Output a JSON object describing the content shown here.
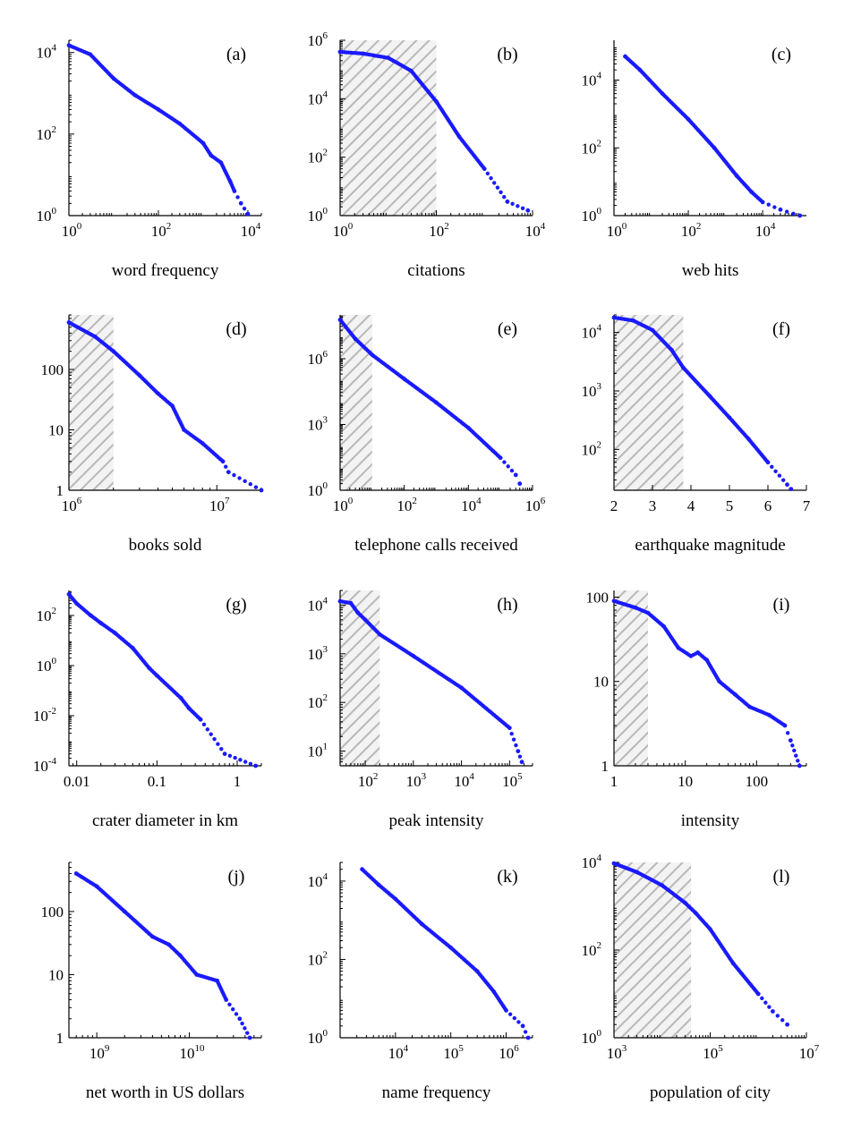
{
  "chart_data": [
    {
      "type": "scatter",
      "panel": "(a)",
      "xlabel": "word frequency",
      "ylabel": "",
      "xscale": "log",
      "yscale": "log",
      "xlim": [
        1,
        20000
      ],
      "ylim": [
        1,
        20000
      ],
      "xticks": [
        {
          "base": "10",
          "exp": "0",
          "value": 1
        },
        {
          "base": "10",
          "exp": "2",
          "value": 100
        },
        {
          "base": "10",
          "exp": "4",
          "value": 10000
        }
      ],
      "yticks": [
        {
          "base": "10",
          "exp": "0",
          "value": 1
        },
        {
          "base": "10",
          "exp": "2",
          "value": 100
        },
        {
          "base": "10",
          "exp": "4",
          "value": 10000
        }
      ],
      "shaded_region": null,
      "points": [
        [
          1,
          15000
        ],
        [
          3,
          9000
        ],
        [
          10,
          2300
        ],
        [
          30,
          900
        ],
        [
          100,
          400
        ],
        [
          300,
          180
        ],
        [
          1000,
          60
        ],
        [
          1500,
          30
        ],
        [
          2500,
          20
        ],
        [
          4000,
          7
        ],
        [
          5000,
          4
        ],
        [
          7000,
          2
        ],
        [
          10000,
          1.1
        ]
      ]
    },
    {
      "type": "scatter",
      "panel": "(b)",
      "xlabel": "citations",
      "ylabel": "",
      "xscale": "log",
      "yscale": "log",
      "xlim": [
        1,
        10000
      ],
      "ylim": [
        1,
        1000000
      ],
      "xticks": [
        {
          "base": "10",
          "exp": "0",
          "value": 1
        },
        {
          "base": "10",
          "exp": "2",
          "value": 100
        },
        {
          "base": "10",
          "exp": "4",
          "value": 10000
        }
      ],
      "yticks": [
        {
          "base": "10",
          "exp": "0",
          "value": 1
        },
        {
          "base": "10",
          "exp": "2",
          "value": 100
        },
        {
          "base": "10",
          "exp": "4",
          "value": 10000
        },
        {
          "base": "10",
          "exp": "6",
          "value": 1000000
        }
      ],
      "shaded_region": [
        1,
        100
      ],
      "points": [
        [
          1,
          400000
        ],
        [
          3,
          350000
        ],
        [
          10,
          250000
        ],
        [
          30,
          90000
        ],
        [
          100,
          8000
        ],
        [
          300,
          500
        ],
        [
          1000,
          40
        ],
        [
          3000,
          3
        ],
        [
          8000,
          1.5
        ]
      ]
    },
    {
      "type": "scatter",
      "panel": "(c)",
      "xlabel": "web hits",
      "ylabel": "",
      "xscale": "log",
      "yscale": "log",
      "xlim": [
        1,
        150000
      ],
      "ylim": [
        1,
        150000
      ],
      "xticks": [
        {
          "base": "10",
          "exp": "0",
          "value": 1
        },
        {
          "base": "10",
          "exp": "2",
          "value": 100
        },
        {
          "base": "10",
          "exp": "4",
          "value": 10000
        }
      ],
      "yticks": [
        {
          "base": "10",
          "exp": "0",
          "value": 1
        },
        {
          "base": "10",
          "exp": "2",
          "value": 100
        },
        {
          "base": "10",
          "exp": "4",
          "value": 10000
        }
      ],
      "shaded_region": null,
      "points": [
        [
          2,
          50000
        ],
        [
          5,
          20000
        ],
        [
          20,
          4000
        ],
        [
          100,
          700
        ],
        [
          500,
          100
        ],
        [
          2000,
          15
        ],
        [
          5000,
          5
        ],
        [
          10000,
          2.5
        ],
        [
          30000,
          1.5
        ],
        [
          100000,
          1
        ]
      ]
    },
    {
      "type": "scatter",
      "panel": "(d)",
      "xlabel": "books sold",
      "ylabel": "",
      "xscale": "log",
      "yscale": "log",
      "xlim": [
        1000000,
        20000000
      ],
      "ylim": [
        1,
        800
      ],
      "xticks": [
        {
          "base": "10",
          "exp": "6",
          "value": 1000000
        },
        {
          "base": "10",
          "exp": "7",
          "value": 10000000
        }
      ],
      "yticks": [
        {
          "base": "1",
          "exp": "",
          "value": 1
        },
        {
          "base": "10",
          "exp": "",
          "value": 10
        },
        {
          "base": "100",
          "exp": "",
          "value": 100
        }
      ],
      "shaded_region": [
        1000000,
        2000000
      ],
      "points": [
        [
          1000000,
          600
        ],
        [
          1500000,
          350
        ],
        [
          2000000,
          200
        ],
        [
          3000000,
          80
        ],
        [
          4000000,
          40
        ],
        [
          5000000,
          25
        ],
        [
          6000000,
          10
        ],
        [
          8000000,
          6
        ],
        [
          11000000,
          3
        ],
        [
          12000000,
          2
        ],
        [
          20000000,
          1
        ]
      ]
    },
    {
      "type": "scatter",
      "panel": "(e)",
      "xlabel": "telephone calls received",
      "ylabel": "",
      "xscale": "log",
      "yscale": "log",
      "xlim": [
        1,
        1000000
      ],
      "ylim": [
        1,
        100000000
      ],
      "xticks": [
        {
          "base": "10",
          "exp": "0",
          "value": 1
        },
        {
          "base": "10",
          "exp": "2",
          "value": 100
        },
        {
          "base": "10",
          "exp": "4",
          "value": 10000
        },
        {
          "base": "10",
          "exp": "6",
          "value": 1000000
        }
      ],
      "yticks": [
        {
          "base": "10",
          "exp": "0",
          "value": 1
        },
        {
          "base": "10",
          "exp": "3",
          "value": 1000
        },
        {
          "base": "10",
          "exp": "6",
          "value": 1000000
        }
      ],
      "shaded_region": [
        1,
        10
      ],
      "points": [
        [
          1,
          60000000
        ],
        [
          3,
          8000000
        ],
        [
          10,
          1500000
        ],
        [
          100,
          120000
        ],
        [
          1000,
          10000
        ],
        [
          10000,
          700
        ],
        [
          100000,
          30
        ],
        [
          300000,
          5
        ],
        [
          400000,
          2
        ]
      ]
    },
    {
      "type": "scatter",
      "panel": "(f)",
      "xlabel": "earthquake magnitude",
      "ylabel": "",
      "xscale": "linear",
      "yscale": "log",
      "xlim": [
        2,
        7
      ],
      "ylim": [
        20,
        20000
      ],
      "xticks": [
        {
          "base": "2",
          "exp": "",
          "value": 2
        },
        {
          "base": "3",
          "exp": "",
          "value": 3
        },
        {
          "base": "4",
          "exp": "",
          "value": 4
        },
        {
          "base": "5",
          "exp": "",
          "value": 5
        },
        {
          "base": "6",
          "exp": "",
          "value": 6
        },
        {
          "base": "7",
          "exp": "",
          "value": 7
        }
      ],
      "yticks": [
        {
          "base": "10",
          "exp": "2",
          "value": 100
        },
        {
          "base": "10",
          "exp": "3",
          "value": 1000
        },
        {
          "base": "10",
          "exp": "4",
          "value": 10000
        }
      ],
      "shaded_region": [
        2,
        3.8
      ],
      "points": [
        [
          2,
          18000
        ],
        [
          2.5,
          16000
        ],
        [
          3,
          11000
        ],
        [
          3.5,
          5000
        ],
        [
          3.8,
          2500
        ],
        [
          4.5,
          800
        ],
        [
          5,
          350
        ],
        [
          5.5,
          150
        ],
        [
          6,
          60
        ],
        [
          6.5,
          25
        ],
        [
          6.6,
          21
        ]
      ]
    },
    {
      "type": "scatter",
      "panel": "(g)",
      "xlabel": "crater diameter in km",
      "ylabel": "",
      "xscale": "log",
      "yscale": "log",
      "xlim": [
        0.008,
        2
      ],
      "ylim": [
        0.0001,
        1000
      ],
      "xticks": [
        {
          "base": "0.01",
          "exp": "",
          "value": 0.01
        },
        {
          "base": "0.1",
          "exp": "",
          "value": 0.1
        },
        {
          "base": "1",
          "exp": "",
          "value": 1
        }
      ],
      "yticks": [
        {
          "base": "10",
          "exp": "-4",
          "value": 0.0001
        },
        {
          "base": "10",
          "exp": "-2",
          "value": 0.01
        },
        {
          "base": "10",
          "exp": "0",
          "value": 1
        },
        {
          "base": "10",
          "exp": "2",
          "value": 100
        }
      ],
      "shaded_region": null,
      "points": [
        [
          0.008,
          700
        ],
        [
          0.01,
          300
        ],
        [
          0.015,
          100
        ],
        [
          0.02,
          50
        ],
        [
          0.03,
          20
        ],
        [
          0.05,
          5
        ],
        [
          0.08,
          0.8
        ],
        [
          0.1,
          0.4
        ],
        [
          0.2,
          0.05
        ],
        [
          0.25,
          0.02
        ],
        [
          0.35,
          0.007
        ],
        [
          0.7,
          0.0003
        ],
        [
          1.7,
          0.0001
        ]
      ]
    },
    {
      "type": "scatter",
      "panel": "(h)",
      "xlabel": "peak intensity",
      "ylabel": "",
      "xscale": "log",
      "yscale": "log",
      "xlim": [
        30,
        300000
      ],
      "ylim": [
        5,
        20000
      ],
      "xticks": [
        {
          "base": "10",
          "exp": "2",
          "value": 100
        },
        {
          "base": "10",
          "exp": "3",
          "value": 1000
        },
        {
          "base": "10",
          "exp": "4",
          "value": 10000
        },
        {
          "base": "10",
          "exp": "5",
          "value": 100000
        }
      ],
      "yticks": [
        {
          "base": "10",
          "exp": "1",
          "value": 10
        },
        {
          "base": "10",
          "exp": "2",
          "value": 100
        },
        {
          "base": "10",
          "exp": "3",
          "value": 1000
        },
        {
          "base": "10",
          "exp": "4",
          "value": 10000
        }
      ],
      "shaded_region": [
        30,
        200
      ],
      "points": [
        [
          30,
          12000
        ],
        [
          50,
          11000
        ],
        [
          70,
          7000
        ],
        [
          100,
          5000
        ],
        [
          200,
          2500
        ],
        [
          1000,
          900
        ],
        [
          10000,
          200
        ],
        [
          100000,
          30
        ],
        [
          150000,
          10
        ],
        [
          180000,
          6
        ]
      ]
    },
    {
      "type": "scatter",
      "panel": "(i)",
      "xlabel": "intensity",
      "ylabel": "",
      "xscale": "log",
      "yscale": "log",
      "xlim": [
        1,
        500
      ],
      "ylim": [
        1,
        120
      ],
      "xticks": [
        {
          "base": "1",
          "exp": "",
          "value": 1
        },
        {
          "base": "10",
          "exp": "",
          "value": 10
        },
        {
          "base": "100",
          "exp": "",
          "value": 100
        }
      ],
      "yticks": [
        {
          "base": "1",
          "exp": "",
          "value": 1
        },
        {
          "base": "10",
          "exp": "",
          "value": 10
        },
        {
          "base": "100",
          "exp": "",
          "value": 100
        }
      ],
      "shaded_region": [
        1,
        3
      ],
      "points": [
        [
          1,
          90
        ],
        [
          2,
          75
        ],
        [
          3,
          65
        ],
        [
          5,
          45
        ],
        [
          8,
          25
        ],
        [
          12,
          20
        ],
        [
          15,
          22
        ],
        [
          20,
          18
        ],
        [
          30,
          10
        ],
        [
          50,
          7
        ],
        [
          80,
          5
        ],
        [
          150,
          4
        ],
        [
          250,
          3
        ],
        [
          300,
          2
        ],
        [
          400,
          1
        ]
      ]
    },
    {
      "type": "scatter",
      "panel": "(j)",
      "xlabel": "net worth in US dollars",
      "ylabel": "",
      "xscale": "log",
      "yscale": "log",
      "xlim": [
        500000000,
        60000000000
      ],
      "ylim": [
        1,
        600
      ],
      "xticks": [
        {
          "base": "10",
          "exp": "9",
          "value": 1000000000
        },
        {
          "base": "10",
          "exp": "10",
          "value": 10000000000
        }
      ],
      "yticks": [
        {
          "base": "1",
          "exp": "",
          "value": 1
        },
        {
          "base": "10",
          "exp": "",
          "value": 10
        },
        {
          "base": "100",
          "exp": "",
          "value": 100
        }
      ],
      "shaded_region": null,
      "points": [
        [
          600000000,
          400
        ],
        [
          1000000000,
          250
        ],
        [
          2000000000,
          100
        ],
        [
          4000000000,
          40
        ],
        [
          6000000000,
          30
        ],
        [
          8000000000,
          20
        ],
        [
          12000000000,
          10
        ],
        [
          20000000000,
          8
        ],
        [
          25000000000,
          4
        ],
        [
          35000000000,
          2
        ],
        [
          45000000000,
          1
        ]
      ]
    },
    {
      "type": "scatter",
      "panel": "(k)",
      "xlabel": "name frequency",
      "ylabel": "",
      "xscale": "log",
      "yscale": "log",
      "xlim": [
        1000,
        3000000
      ],
      "ylim": [
        1,
        30000
      ],
      "xticks": [
        {
          "base": "10",
          "exp": "4",
          "value": 10000
        },
        {
          "base": "10",
          "exp": "5",
          "value": 100000
        },
        {
          "base": "10",
          "exp": "6",
          "value": 1000000
        }
      ],
      "yticks": [
        {
          "base": "10",
          "exp": "0",
          "value": 1
        },
        {
          "base": "10",
          "exp": "2",
          "value": 100
        },
        {
          "base": "10",
          "exp": "4",
          "value": 10000
        }
      ],
      "shaded_region": null,
      "points": [
        [
          2500,
          20000
        ],
        [
          5000,
          8000
        ],
        [
          10000,
          3500
        ],
        [
          30000,
          800
        ],
        [
          100000,
          200
        ],
        [
          300000,
          50
        ],
        [
          600000,
          15
        ],
        [
          1000000,
          5
        ],
        [
          2000000,
          2
        ],
        [
          2500000,
          1
        ]
      ]
    },
    {
      "type": "scatter",
      "panel": "(l)",
      "xlabel": "population of city",
      "ylabel": "",
      "xscale": "log",
      "yscale": "log",
      "xlim": [
        1000,
        10000000
      ],
      "ylim": [
        1,
        10000
      ],
      "xticks": [
        {
          "base": "10",
          "exp": "3",
          "value": 1000
        },
        {
          "base": "10",
          "exp": "5",
          "value": 100000
        },
        {
          "base": "10",
          "exp": "7",
          "value": 10000000
        }
      ],
      "yticks": [
        {
          "base": "10",
          "exp": "0",
          "value": 1
        },
        {
          "base": "10",
          "exp": "2",
          "value": 100
        },
        {
          "base": "10",
          "exp": "4",
          "value": 10000
        }
      ],
      "shaded_region": [
        1000,
        40000
      ],
      "points": [
        [
          1000,
          9500
        ],
        [
          3000,
          6000
        ],
        [
          10000,
          3000
        ],
        [
          30000,
          1200
        ],
        [
          50000,
          700
        ],
        [
          100000,
          300
        ],
        [
          300000,
          50
        ],
        [
          1000000,
          10
        ],
        [
          2000000,
          4
        ],
        [
          4000000,
          2
        ]
      ]
    }
  ]
}
